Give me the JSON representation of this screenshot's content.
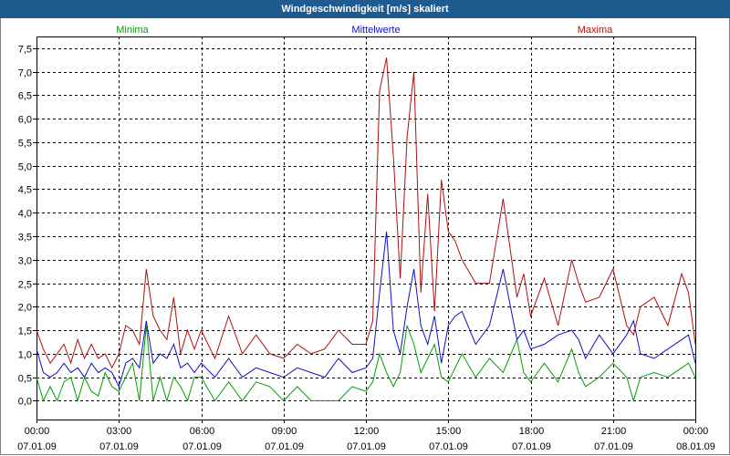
{
  "window": {
    "title": "Windgeschwindigkeit [m/s] skaliert"
  },
  "chart_data": {
    "type": "line",
    "title": "Windgeschwindigkeit [m/s] skaliert",
    "ylim": [
      -0.4,
      7.75
    ],
    "y_ticks": [
      "7,5",
      "7,0",
      "6,5",
      "6,0",
      "5,5",
      "5,0",
      "4,5",
      "4,0",
      "3,5",
      "3,0",
      "2,5",
      "2,0",
      "1,5",
      "1,0",
      "0,5",
      "0,0"
    ],
    "y_tick_values": [
      7.5,
      7.0,
      6.5,
      6.0,
      5.5,
      5.0,
      4.5,
      4.0,
      3.5,
      3.0,
      2.5,
      2.0,
      1.5,
      1.0,
      0.5,
      0.0
    ],
    "x_ticks": [
      {
        "time": "00:00",
        "date": "07.01.09",
        "hour": 0
      },
      {
        "time": "03:00",
        "date": "07.01.09",
        "hour": 3
      },
      {
        "time": "06:00",
        "date": "07.01.09",
        "hour": 6
      },
      {
        "time": "09:00",
        "date": "07.01.09",
        "hour": 9
      },
      {
        "time": "12:00",
        "date": "07.01.09",
        "hour": 12
      },
      {
        "time": "15:00",
        "date": "07.01.09",
        "hour": 15
      },
      {
        "time": "18:00",
        "date": "07.01.09",
        "hour": 18
      },
      {
        "time": "21:00",
        "date": "07.01.09",
        "hour": 21
      },
      {
        "time": "00:00",
        "date": "08.01.09",
        "hour": 24
      }
    ],
    "xlim_hours": [
      0,
      24
    ],
    "grid": true,
    "legend_position": "top",
    "series": [
      {
        "name": "Minima",
        "color": "#00a000",
        "x_hours": [
          0,
          0.25,
          0.5,
          0.75,
          1,
          1.25,
          1.5,
          1.75,
          2,
          2.25,
          2.5,
          2.75,
          3,
          3.25,
          3.5,
          3.75,
          4,
          4.25,
          4.5,
          4.75,
          5,
          5.25,
          5.5,
          5.75,
          6,
          6.5,
          7,
          7.5,
          8,
          8.5,
          9,
          9.5,
          10,
          10.5,
          11,
          11.5,
          12,
          12.25,
          12.5,
          12.75,
          13,
          13.25,
          13.5,
          13.75,
          14,
          14.25,
          14.5,
          14.75,
          15,
          15.25,
          15.5,
          16,
          16.5,
          17,
          17.5,
          17.75,
          18,
          18.5,
          19,
          19.5,
          19.75,
          20,
          20.5,
          21,
          21.5,
          21.75,
          22,
          22.5,
          23,
          23.5,
          23.75,
          24
        ],
        "values": [
          0.5,
          0,
          0.3,
          0,
          0.4,
          0.5,
          0,
          0.5,
          0.2,
          0.1,
          0.6,
          0.3,
          0.2,
          0.5,
          0.8,
          0,
          1.6,
          0,
          0.5,
          0,
          0.5,
          0.3,
          0,
          0.5,
          0.5,
          0,
          0.4,
          0,
          0.4,
          0.3,
          0,
          0.3,
          0,
          0,
          0,
          0.3,
          0.2,
          0.4,
          1,
          0.6,
          0.3,
          0.6,
          1.6,
          1.2,
          0.6,
          0.9,
          1.2,
          0.5,
          0.4,
          0.7,
          1,
          0.5,
          0.9,
          0.6,
          1.3,
          0.6,
          0.4,
          0.8,
          0.4,
          1.1,
          0.6,
          0.3,
          0.5,
          0.8,
          0.5,
          0,
          0.5,
          0.6,
          0.5,
          0.7,
          0.8,
          0.5
        ]
      },
      {
        "name": "Mittelwerte",
        "color": "#1010c0",
        "x_hours": [
          0,
          0.25,
          0.5,
          0.75,
          1,
          1.25,
          1.5,
          1.75,
          2,
          2.25,
          2.5,
          2.75,
          3,
          3.25,
          3.5,
          3.75,
          4,
          4.25,
          4.5,
          4.75,
          5,
          5.25,
          5.5,
          5.75,
          6,
          6.5,
          7,
          7.5,
          8,
          8.5,
          9,
          9.5,
          10,
          10.5,
          11,
          11.5,
          12,
          12.25,
          12.5,
          12.75,
          13,
          13.25,
          13.5,
          13.75,
          14,
          14.25,
          14.5,
          14.75,
          15,
          15.25,
          15.5,
          16,
          16.5,
          17,
          17.5,
          17.75,
          18,
          18.5,
          19,
          19.5,
          19.75,
          20,
          20.5,
          21,
          21.5,
          21.75,
          22,
          22.5,
          23,
          23.5,
          23.75,
          24
        ],
        "values": [
          1.1,
          0.6,
          0.5,
          0.6,
          0.8,
          0.6,
          0.7,
          0.5,
          0.8,
          0.6,
          0.7,
          0.6,
          0.3,
          0.8,
          0.9,
          0.7,
          1.7,
          0.8,
          1.0,
          0.9,
          1.2,
          0.7,
          0.8,
          0.6,
          0.8,
          0.5,
          0.9,
          0.5,
          0.7,
          0.6,
          0.5,
          0.7,
          0.6,
          0.5,
          0.9,
          0.6,
          0.7,
          0.9,
          2.3,
          3.6,
          1.5,
          1.0,
          2.0,
          2.8,
          1.6,
          1.2,
          1.8,
          0.8,
          1.6,
          1.8,
          1.9,
          1.2,
          1.6,
          2.8,
          1.3,
          1.5,
          1.1,
          1.2,
          1.4,
          1.5,
          1.3,
          0.9,
          1.4,
          1.0,
          1.4,
          1.7,
          1.0,
          0.9,
          1.1,
          1.3,
          1.4,
          0.8
        ]
      },
      {
        "name": "Maxima",
        "color": "#b01010",
        "x_hours": [
          0,
          0.25,
          0.5,
          0.75,
          1,
          1.25,
          1.5,
          1.75,
          2,
          2.25,
          2.5,
          2.75,
          3,
          3.25,
          3.5,
          3.75,
          4,
          4.25,
          4.5,
          4.75,
          5,
          5.25,
          5.5,
          5.75,
          6,
          6.5,
          7,
          7.5,
          8,
          8.5,
          9,
          9.5,
          10,
          10.5,
          11,
          11.5,
          12,
          12.25,
          12.5,
          12.75,
          13,
          13.25,
          13.5,
          13.75,
          14,
          14.25,
          14.5,
          14.75,
          15,
          15.25,
          15.5,
          16,
          16.5,
          17,
          17.5,
          17.75,
          18,
          18.5,
          19,
          19.5,
          19.75,
          20,
          20.5,
          21,
          21.5,
          21.75,
          22,
          22.5,
          23,
          23.5,
          23.75,
          24
        ],
        "values": [
          1.5,
          1.1,
          0.8,
          1.0,
          1.2,
          0.8,
          1.3,
          0.9,
          1.2,
          0.9,
          1.0,
          0.7,
          1.0,
          1.6,
          1.5,
          1.2,
          2.8,
          1.8,
          1.5,
          1.3,
          2.2,
          1.0,
          1.5,
          1.1,
          1.5,
          0.9,
          1.8,
          1.0,
          1.4,
          1.0,
          0.9,
          1.2,
          1.0,
          1.1,
          1.5,
          1.2,
          1.2,
          1.7,
          6.6,
          7.3,
          5.2,
          2.6,
          5.6,
          7.0,
          2.3,
          4.4,
          1.9,
          4.7,
          3.6,
          3.4,
          3.0,
          2.5,
          2.5,
          4.3,
          2.2,
          2.7,
          1.8,
          2.6,
          1.6,
          3.0,
          2.5,
          2.1,
          2.2,
          2.8,
          1.6,
          1.4,
          2.0,
          2.2,
          1.6,
          2.7,
          2.3,
          1.2
        ]
      }
    ]
  }
}
